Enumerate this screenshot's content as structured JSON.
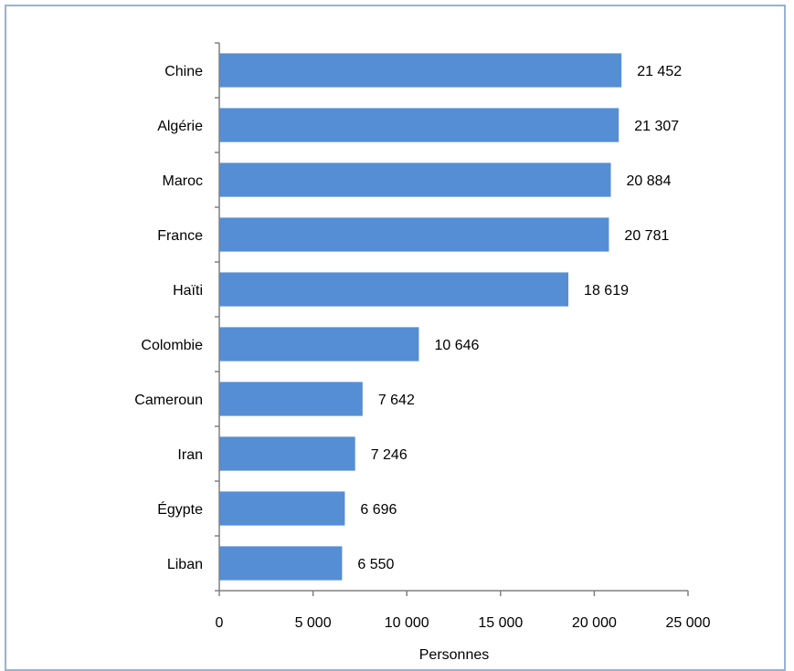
{
  "chart_data": {
    "type": "bar",
    "orientation": "horizontal",
    "title": "",
    "xlabel": "Personnes",
    "ylabel": "",
    "xlim": [
      0,
      25000
    ],
    "grid": false,
    "legend": "none",
    "categories": [
      "Chine",
      "Algérie",
      "Maroc",
      "France",
      "Haïti",
      "Colombie",
      "Cameroun",
      "Iran",
      "Égypte",
      "Liban"
    ],
    "values": [
      21452,
      21307,
      20884,
      20781,
      18619,
      10646,
      7642,
      7246,
      6696,
      6550
    ],
    "value_labels": [
      "21 452",
      "21 307",
      "20 884",
      "20 781",
      "18 619",
      "10 646",
      "7 642",
      "7 246",
      "6 696",
      "6 550"
    ],
    "x_ticks": [
      0,
      5000,
      10000,
      15000,
      20000,
      25000
    ],
    "x_tick_labels": [
      "0",
      "5 000",
      "10 000",
      "15 000",
      "20 000",
      "25 000"
    ]
  },
  "colors": {
    "bar": "#558ed5",
    "frame": "#95b3d7",
    "axis": "#808080"
  }
}
